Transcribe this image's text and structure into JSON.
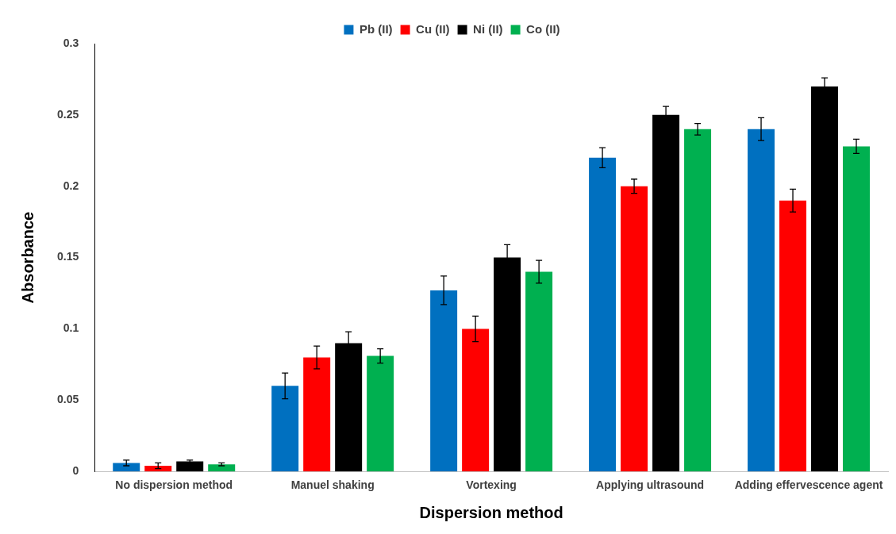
{
  "chart_data": {
    "type": "bar",
    "xlabel": "Dispersion method",
    "ylabel": "Absorbance",
    "categories": [
      "No dispersion method",
      "Manuel shaking",
      "Vortexing",
      "Applying ultrasound",
      "Adding effervescence agent"
    ],
    "series": [
      {
        "name": "Pb (II)",
        "color": "#0070c0",
        "values": [
          0.006,
          0.06,
          0.127,
          0.22,
          0.24
        ],
        "errors": [
          0.002,
          0.009,
          0.01,
          0.007,
          0.008
        ]
      },
      {
        "name": "Cu (II)",
        "color": "#ff0000",
        "values": [
          0.004,
          0.08,
          0.1,
          0.2,
          0.19
        ],
        "errors": [
          0.002,
          0.008,
          0.009,
          0.005,
          0.008
        ]
      },
      {
        "name": "Ni (II)",
        "color": "#000000",
        "values": [
          0.007,
          0.09,
          0.15,
          0.25,
          0.27
        ],
        "errors": [
          0.001,
          0.008,
          0.009,
          0.006,
          0.006
        ]
      },
      {
        "name": "Co (II)",
        "color": "#00b050",
        "values": [
          0.005,
          0.081,
          0.14,
          0.24,
          0.228
        ],
        "errors": [
          0.001,
          0.005,
          0.008,
          0.004,
          0.005
        ]
      }
    ],
    "ylim": [
      0,
      0.3
    ],
    "yticks": [
      0,
      0.05,
      0.1,
      0.15,
      0.2,
      0.25,
      0.3
    ],
    "grid": false,
    "legend": "top"
  }
}
